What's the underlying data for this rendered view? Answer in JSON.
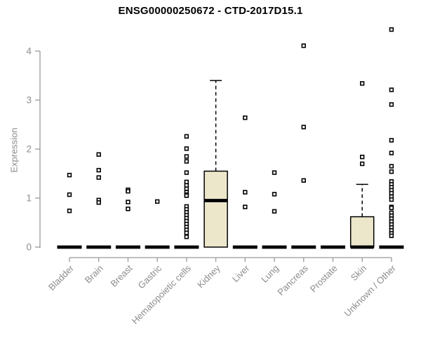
{
  "chart_data": {
    "type": "boxplot",
    "title": "ENSG00000250672 - CTD-2017D15.1",
    "ylabel": "Expression",
    "xlabel": "",
    "ylim": [
      0,
      4.5
    ],
    "yticks": [
      0,
      1,
      2,
      3,
      4
    ],
    "grid": false,
    "legend": "none",
    "point_marker": "open-square",
    "colors": {
      "box_fill": "#ece7cb",
      "box_stroke": "#000000",
      "median": "#000000",
      "points": "#000000",
      "axis_line": "#999999",
      "axis_text": "#8c8c8c",
      "title_text": "#000000",
      "background": "#ffffff"
    },
    "categories": [
      {
        "label": "Bladder",
        "box": {
          "low": 0,
          "q1": 0,
          "median": 0,
          "q3": 0,
          "high": 0
        },
        "points": [
          1.47,
          1.07,
          0.74
        ]
      },
      {
        "label": "Brain",
        "box": {
          "low": 0,
          "q1": 0,
          "median": 0,
          "q3": 0,
          "high": 0
        },
        "points": [
          1.89,
          1.57,
          1.42,
          0.96,
          0.91
        ]
      },
      {
        "label": "Breast",
        "box": {
          "low": 0,
          "q1": 0,
          "median": 0,
          "q3": 0,
          "high": 0
        },
        "points": [
          1.17,
          1.14,
          0.92,
          0.78
        ]
      },
      {
        "label": "Gastric",
        "box": {
          "low": 0,
          "q1": 0,
          "median": 0,
          "q3": 0,
          "high": 0
        },
        "points": [
          0.93
        ]
      },
      {
        "label": "Hematopoietic cells",
        "box": {
          "low": 0,
          "q1": 0,
          "median": 0,
          "q3": 0,
          "high": 0
        },
        "points": [
          2.26,
          2.01,
          1.85,
          1.75,
          1.52,
          1.33,
          1.26,
          1.19,
          1.12,
          1.07,
          1.05,
          0.83,
          0.77,
          0.71,
          0.65,
          0.59,
          0.53,
          0.47,
          0.41,
          0.35,
          0.29,
          0.21
        ]
      },
      {
        "label": "Kidney",
        "box": {
          "low": 0,
          "q1": 0,
          "median": 0.95,
          "q3": 1.55,
          "high": 3.4
        },
        "points": []
      },
      {
        "label": "Liver",
        "box": {
          "low": 0,
          "q1": 0,
          "median": 0,
          "q3": 0,
          "high": 0
        },
        "points": [
          2.64,
          1.12,
          0.82
        ]
      },
      {
        "label": "Lung",
        "box": {
          "low": 0,
          "q1": 0,
          "median": 0,
          "q3": 0,
          "high": 0
        },
        "points": [
          1.52,
          1.08,
          0.73
        ]
      },
      {
        "label": "Pancreas",
        "box": {
          "low": 0,
          "q1": 0,
          "median": 0,
          "q3": 0,
          "high": 0
        },
        "points": [
          4.11,
          2.45,
          1.36
        ]
      },
      {
        "label": "Prostate",
        "box": {
          "low": 0,
          "q1": 0,
          "median": 0,
          "q3": 0,
          "high": 0
        },
        "points": []
      },
      {
        "label": "Skin",
        "box": {
          "low": 0,
          "q1": 0,
          "median": 0,
          "q3": 0.62,
          "high": 1.28
        },
        "points": [
          3.34,
          1.84,
          1.7
        ]
      },
      {
        "label": "Unknown / Other",
        "box": {
          "low": 0,
          "q1": 0,
          "median": 0,
          "q3": 0,
          "high": 0
        },
        "points": [
          4.44,
          3.21,
          2.91,
          2.18,
          1.92,
          1.65,
          1.54,
          1.34,
          1.28,
          1.22,
          1.16,
          1.1,
          1.03,
          0.97,
          0.82,
          0.8,
          0.7,
          0.64,
          0.58,
          0.52,
          0.46,
          0.4,
          0.34,
          0.28,
          0.23
        ]
      }
    ]
  }
}
